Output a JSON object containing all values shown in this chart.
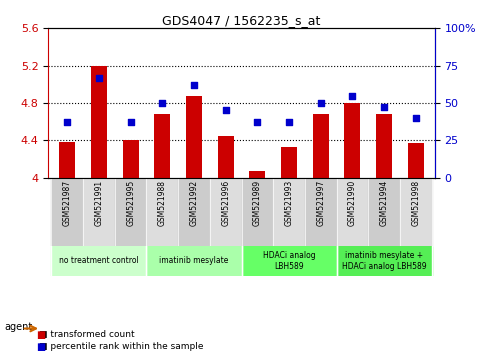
{
  "title": "GDS4047 / 1562235_s_at",
  "samples": [
    "GSM521987",
    "GSM521991",
    "GSM521995",
    "GSM521988",
    "GSM521992",
    "GSM521996",
    "GSM521989",
    "GSM521993",
    "GSM521997",
    "GSM521990",
    "GSM521994",
    "GSM521998"
  ],
  "bar_values": [
    4.38,
    5.2,
    4.4,
    4.68,
    4.88,
    4.45,
    4.07,
    4.33,
    4.68,
    4.8,
    4.68,
    4.37
  ],
  "dot_values": [
    37,
    67,
    37,
    50,
    62,
    45,
    37,
    37,
    50,
    55,
    47,
    40
  ],
  "ylim_left": [
    4.0,
    5.6
  ],
  "ylim_right": [
    0,
    100
  ],
  "yticks_left": [
    4.0,
    4.4,
    4.8,
    5.2,
    5.6
  ],
  "yticks_right": [
    0,
    25,
    50,
    75,
    100
  ],
  "ytick_labels_left": [
    "4",
    "4.4",
    "4.8",
    "5.2",
    "5.6"
  ],
  "ytick_labels_right": [
    "0",
    "25",
    "50",
    "75",
    "100%"
  ],
  "bar_color": "#cc0000",
  "dot_color": "#0000cc",
  "grid_color": "#000000",
  "agent_groups": [
    {
      "label": "no treatment control",
      "start": 0,
      "end": 3,
      "color": "#ccffcc"
    },
    {
      "label": "imatinib mesylate",
      "start": 3,
      "end": 6,
      "color": "#aaffaa"
    },
    {
      "label": "HDACi analog\nLBH589",
      "start": 6,
      "end": 9,
      "color": "#66ff66"
    },
    {
      "label": "imatinib mesylate +\nHDACi analog LBH589",
      "start": 9,
      "end": 12,
      "color": "#55ee55"
    }
  ],
  "xlabel_agent": "agent",
  "legend_bar_label": "transformed count",
  "legend_dot_label": "percentile rank within the sample",
  "tick_label_area_bg": "#cccccc",
  "tick_label_area_lighter": "#dddddd"
}
